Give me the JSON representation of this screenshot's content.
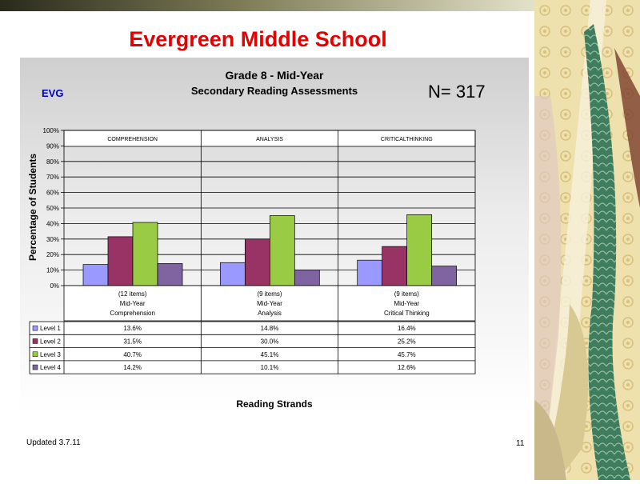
{
  "slide": {
    "title": "Evergreen Middle School",
    "school_code": "EVG",
    "n_label": "N=  317",
    "updated": "Updated  3.7.11",
    "page_number": "11"
  },
  "chart_data": {
    "type": "bar",
    "title": "Grade 8 - Mid-Year",
    "subtitle": "Secondary Reading Assessments",
    "ylabel": "Percentage of Students",
    "xlabel": "Reading Strands",
    "ylim": [
      0,
      100
    ],
    "yticks": [
      "0%",
      "10%",
      "20%",
      "30%",
      "40%",
      "50%",
      "60%",
      "70%",
      "80%",
      "90%",
      "100%"
    ],
    "group_headers": [
      "COMPREHENSION",
      "ANALYSIS",
      "CRITICALTHINKING"
    ],
    "categories": [
      {
        "items": "(12 items)",
        "period": "Mid-Year",
        "name": "Comprehension"
      },
      {
        "items": "(9 items)",
        "period": "Mid-Year",
        "name": "Analysis"
      },
      {
        "items": "(9 items)",
        "period": "Mid-Year",
        "name": "Critical Thinking"
      }
    ],
    "series": [
      {
        "name": "Level 1",
        "color": "#9999ff",
        "values": [
          13.6,
          14.8,
          16.4
        ],
        "labels": [
          "13.6%",
          "14.8%",
          "16.4%"
        ]
      },
      {
        "name": "Level 2",
        "color": "#993366",
        "values": [
          31.5,
          30.0,
          25.2
        ],
        "labels": [
          "31.5%",
          "30.0%",
          "25.2%"
        ]
      },
      {
        "name": "Level 3",
        "color": "#99cc44",
        "values": [
          40.7,
          45.1,
          45.7
        ],
        "labels": [
          "40.7%",
          "45.1%",
          "45.7%"
        ]
      },
      {
        "name": "Level 4",
        "color": "#8064a2",
        "values": [
          14.2,
          10.1,
          12.6
        ],
        "labels": [
          "14.2%",
          "10.1%",
          "12.6%"
        ]
      }
    ],
    "grid": true,
    "legend": "data-table"
  }
}
